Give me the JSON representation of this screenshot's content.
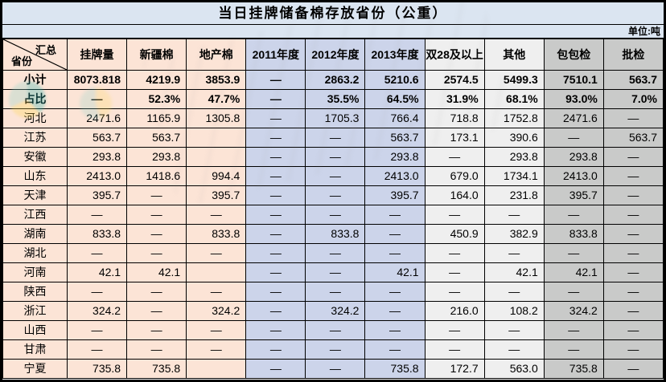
{
  "title": "当日挂牌储备棉存放省份（公重）",
  "unit_label": "单位:吨",
  "corner": {
    "top": "汇总",
    "bottom": "省份"
  },
  "column_groups": [
    "peach",
    "peach",
    "peach",
    "blue",
    "blue",
    "blue",
    "lightgray",
    "lightgray",
    "darkgray",
    "darkgray"
  ],
  "bold_rows": [
    "小计",
    "占比"
  ],
  "colors": {
    "title_bar_bg": "#dbe5f1",
    "peach_bg": "#fce4d6",
    "year_blue_bg": "#ccd4ea",
    "light_gray_bg": "#efefef",
    "dark_gray_bg": "#c9cac9",
    "border": "#000000",
    "watermark_teal": "#2ab5b0",
    "watermark_yellow": "#ffd84d"
  },
  "chart_data": {
    "type": "table",
    "title": "当日挂牌储备棉存放省份（公重）",
    "unit": "单位:吨",
    "row_header": "汇总省份",
    "columns": [
      "挂牌量",
      "新疆棉",
      "地产棉",
      "2011年度",
      "2012年度",
      "2013年度",
      "双28及以上",
      "其他",
      "包包检",
      "批检"
    ],
    "rows": [
      {
        "label": "小计",
        "values": [
          "8073.818",
          "4219.9",
          "3853.9",
          "—",
          "2863.2",
          "5210.6",
          "2574.5",
          "5499.3",
          "7510.1",
          "563.7"
        ]
      },
      {
        "label": "占比",
        "values": [
          "—",
          "52.3%",
          "47.7%",
          "—",
          "35.5%",
          "64.5%",
          "31.9%",
          "68.1%",
          "93.0%",
          "7.0%"
        ]
      },
      {
        "label": "河北",
        "values": [
          "2471.6",
          "1165.9",
          "1305.8",
          "—",
          "1705.3",
          "766.4",
          "718.8",
          "1752.8",
          "2471.6",
          "—"
        ]
      },
      {
        "label": "江苏",
        "values": [
          "563.7",
          "563.7",
          "",
          "—",
          "—",
          "563.7",
          "173.1",
          "390.6",
          "—",
          "563.7"
        ]
      },
      {
        "label": "安徽",
        "values": [
          "293.8",
          "293.8",
          "",
          "—",
          "—",
          "293.8",
          "—",
          "293.8",
          "293.8",
          "—"
        ]
      },
      {
        "label": "山东",
        "values": [
          "2413.0",
          "1418.6",
          "994.4",
          "—",
          "—",
          "2413.0",
          "679.0",
          "1734.1",
          "2413.0",
          "—"
        ]
      },
      {
        "label": "天津",
        "values": [
          "395.7",
          "—",
          "395.7",
          "—",
          "—",
          "395.7",
          "164.0",
          "231.8",
          "395.7",
          "—"
        ]
      },
      {
        "label": "江西",
        "values": [
          "—",
          "—",
          "—",
          "—",
          "—",
          "—",
          "—",
          "—",
          "—",
          "—"
        ]
      },
      {
        "label": "湖南",
        "values": [
          "833.8",
          "—",
          "833.8",
          "—",
          "833.8",
          "—",
          "450.9",
          "382.9",
          "833.8",
          "—"
        ]
      },
      {
        "label": "湖北",
        "values": [
          "—",
          "—",
          "—",
          "—",
          "—",
          "—",
          "—",
          "—",
          "—",
          "—"
        ]
      },
      {
        "label": "河南",
        "values": [
          "42.1",
          "42.1",
          "",
          "—",
          "—",
          "42.1",
          "—",
          "42.1",
          "42.1",
          "—"
        ]
      },
      {
        "label": "陕西",
        "values": [
          "—",
          "—",
          "—",
          "—",
          "—",
          "—",
          "—",
          "—",
          "—",
          "—"
        ]
      },
      {
        "label": "浙江",
        "values": [
          "324.2",
          "—",
          "324.2",
          "—",
          "324.2",
          "—",
          "216.0",
          "108.2",
          "324.2",
          "—"
        ]
      },
      {
        "label": "山西",
        "values": [
          "—",
          "—",
          "—",
          "—",
          "—",
          "—",
          "—",
          "—",
          "—",
          "—"
        ]
      },
      {
        "label": "甘肃",
        "values": [
          "—",
          "—",
          "—",
          "—",
          "—",
          "—",
          "—",
          "—",
          "—",
          "—"
        ]
      },
      {
        "label": "宁夏",
        "values": [
          "735.8",
          "735.8",
          "",
          "—",
          "—",
          "735.8",
          "172.7",
          "563.0",
          "735.8",
          "—"
        ]
      }
    ]
  }
}
